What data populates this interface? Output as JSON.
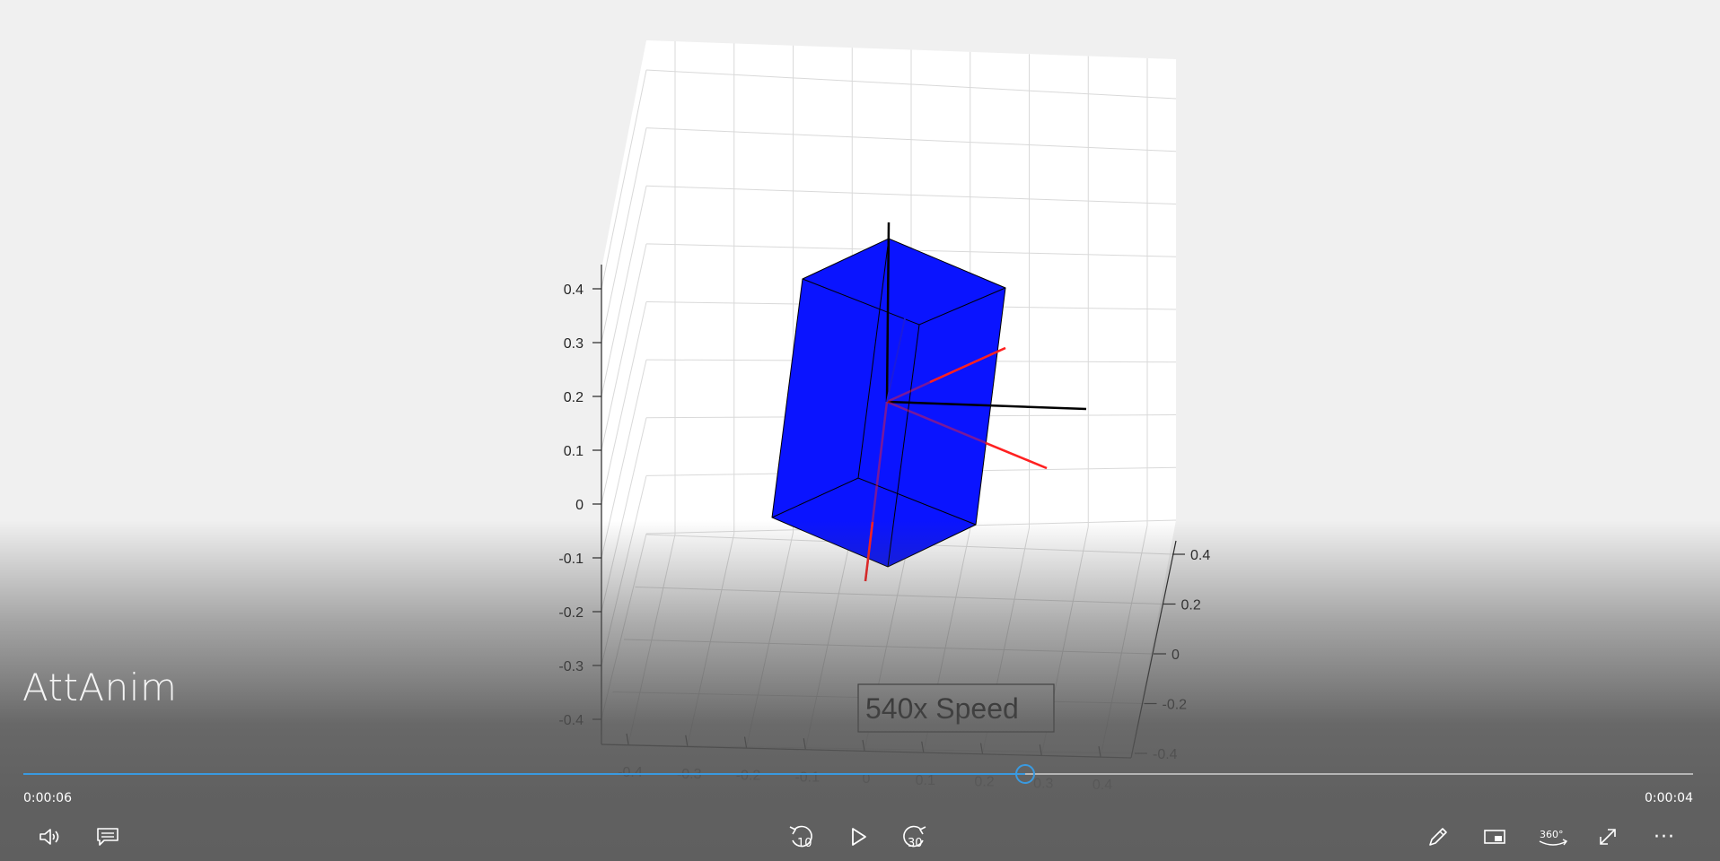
{
  "video": {
    "title": "AttAnim",
    "time_elapsed": "0:00:06",
    "time_remaining": "0:00:04",
    "progress": 0.6
  },
  "figure": {
    "annotation": "540x Speed",
    "colors": {
      "box": "#0a14ff",
      "body_axes": "#ff2020",
      "ref_axes": "#000000"
    },
    "z_ticks": [
      "0.4",
      "0.3",
      "0.2",
      "0.1",
      "0",
      "-0.1",
      "-0.2",
      "-0.3",
      "-0.4"
    ],
    "x_ticks": [
      "-0.4",
      "-0.3",
      "-0.2",
      "-0.1",
      "0",
      "0.1",
      "0.2",
      "0.3",
      "0.4"
    ],
    "y_ticks": [
      "0.4",
      "0.2",
      "0",
      "-0.2",
      "-0.4"
    ]
  },
  "controls": {
    "volume_icon": "volume-icon",
    "captions_icon": "captions-icon",
    "skip_back_label": "10",
    "skip_forward_label": "30",
    "view_360_label": "360°",
    "more_label": "···"
  }
}
